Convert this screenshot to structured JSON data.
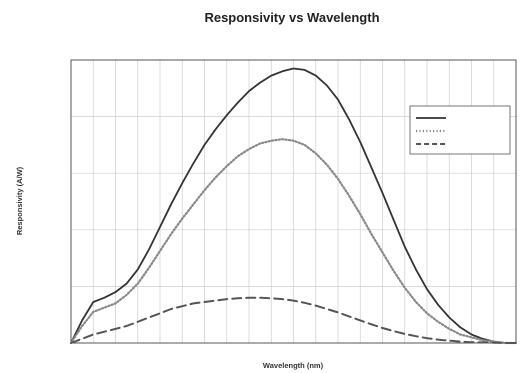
{
  "chart_data": {
    "type": "line",
    "title": "Responsivity vs Wavelength",
    "subtitle_line1": "",
    "subtitle_line2": "",
    "xlabel": "Wavelength (nm)",
    "ylabel": "Responsivity (A/W)",
    "xlim": [
      0,
      1000
    ],
    "ylim": [
      0,
      100
    ],
    "x_ticks": [
      "",
      "",
      "",
      "",
      "",
      "",
      "",
      "",
      "",
      "",
      "",
      "",
      "",
      "",
      "",
      "",
      "",
      "",
      "",
      "",
      ""
    ],
    "y_ticks": [
      "",
      "",
      "",
      "",
      "",
      ""
    ],
    "grid": true,
    "legend_position": "top-right",
    "x": [
      0,
      25,
      50,
      75,
      100,
      125,
      150,
      175,
      200,
      225,
      250,
      275,
      300,
      325,
      350,
      375,
      400,
      425,
      450,
      475,
      500,
      525,
      550,
      575,
      600,
      625,
      650,
      675,
      700,
      725,
      750,
      775,
      800,
      825,
      850,
      875,
      900,
      925,
      950,
      975,
      1000
    ],
    "series": [
      {
        "name": "",
        "color": "#333333",
        "style": "solid",
        "values": [
          0,
          8,
          14.5,
          16,
          18,
          21,
          26,
          33,
          41,
          49,
          56.5,
          63.5,
          70,
          75.5,
          80.5,
          85,
          89,
          92,
          94.5,
          96,
          97,
          96.5,
          94.5,
          91,
          86,
          79,
          71,
          62,
          53,
          43.5,
          34,
          26,
          19,
          13.5,
          9,
          5.5,
          3,
          1.5,
          0.5,
          0,
          0
        ]
      },
      {
        "name": "",
        "color": "#888888",
        "style": "dotted",
        "values": [
          0,
          6,
          11,
          12.5,
          14,
          17,
          21,
          26.5,
          32.5,
          38.5,
          44,
          49,
          54,
          58.5,
          62.5,
          66,
          68.5,
          70.5,
          71.5,
          72,
          71.5,
          70,
          67,
          63,
          58,
          52,
          45.5,
          38.5,
          32,
          25.5,
          19.5,
          14.5,
          10.5,
          7.5,
          5,
          3,
          2,
          1,
          0.5,
          0,
          0
        ]
      },
      {
        "name": "",
        "color": "#555555",
        "style": "dashed",
        "values": [
          0,
          1.5,
          3,
          4,
          5,
          6,
          7.5,
          9,
          10.5,
          12,
          13,
          14,
          14.5,
          15,
          15.5,
          15.8,
          16,
          16,
          15.8,
          15.5,
          15,
          14.2,
          13.2,
          12,
          10.8,
          9.4,
          8,
          6.6,
          5.3,
          4.2,
          3.2,
          2.4,
          1.7,
          1.2,
          0.8,
          0.5,
          0.3,
          0.2,
          0.1,
          0,
          0
        ]
      }
    ],
    "legend_values": [
      "",
      "",
      ""
    ]
  }
}
